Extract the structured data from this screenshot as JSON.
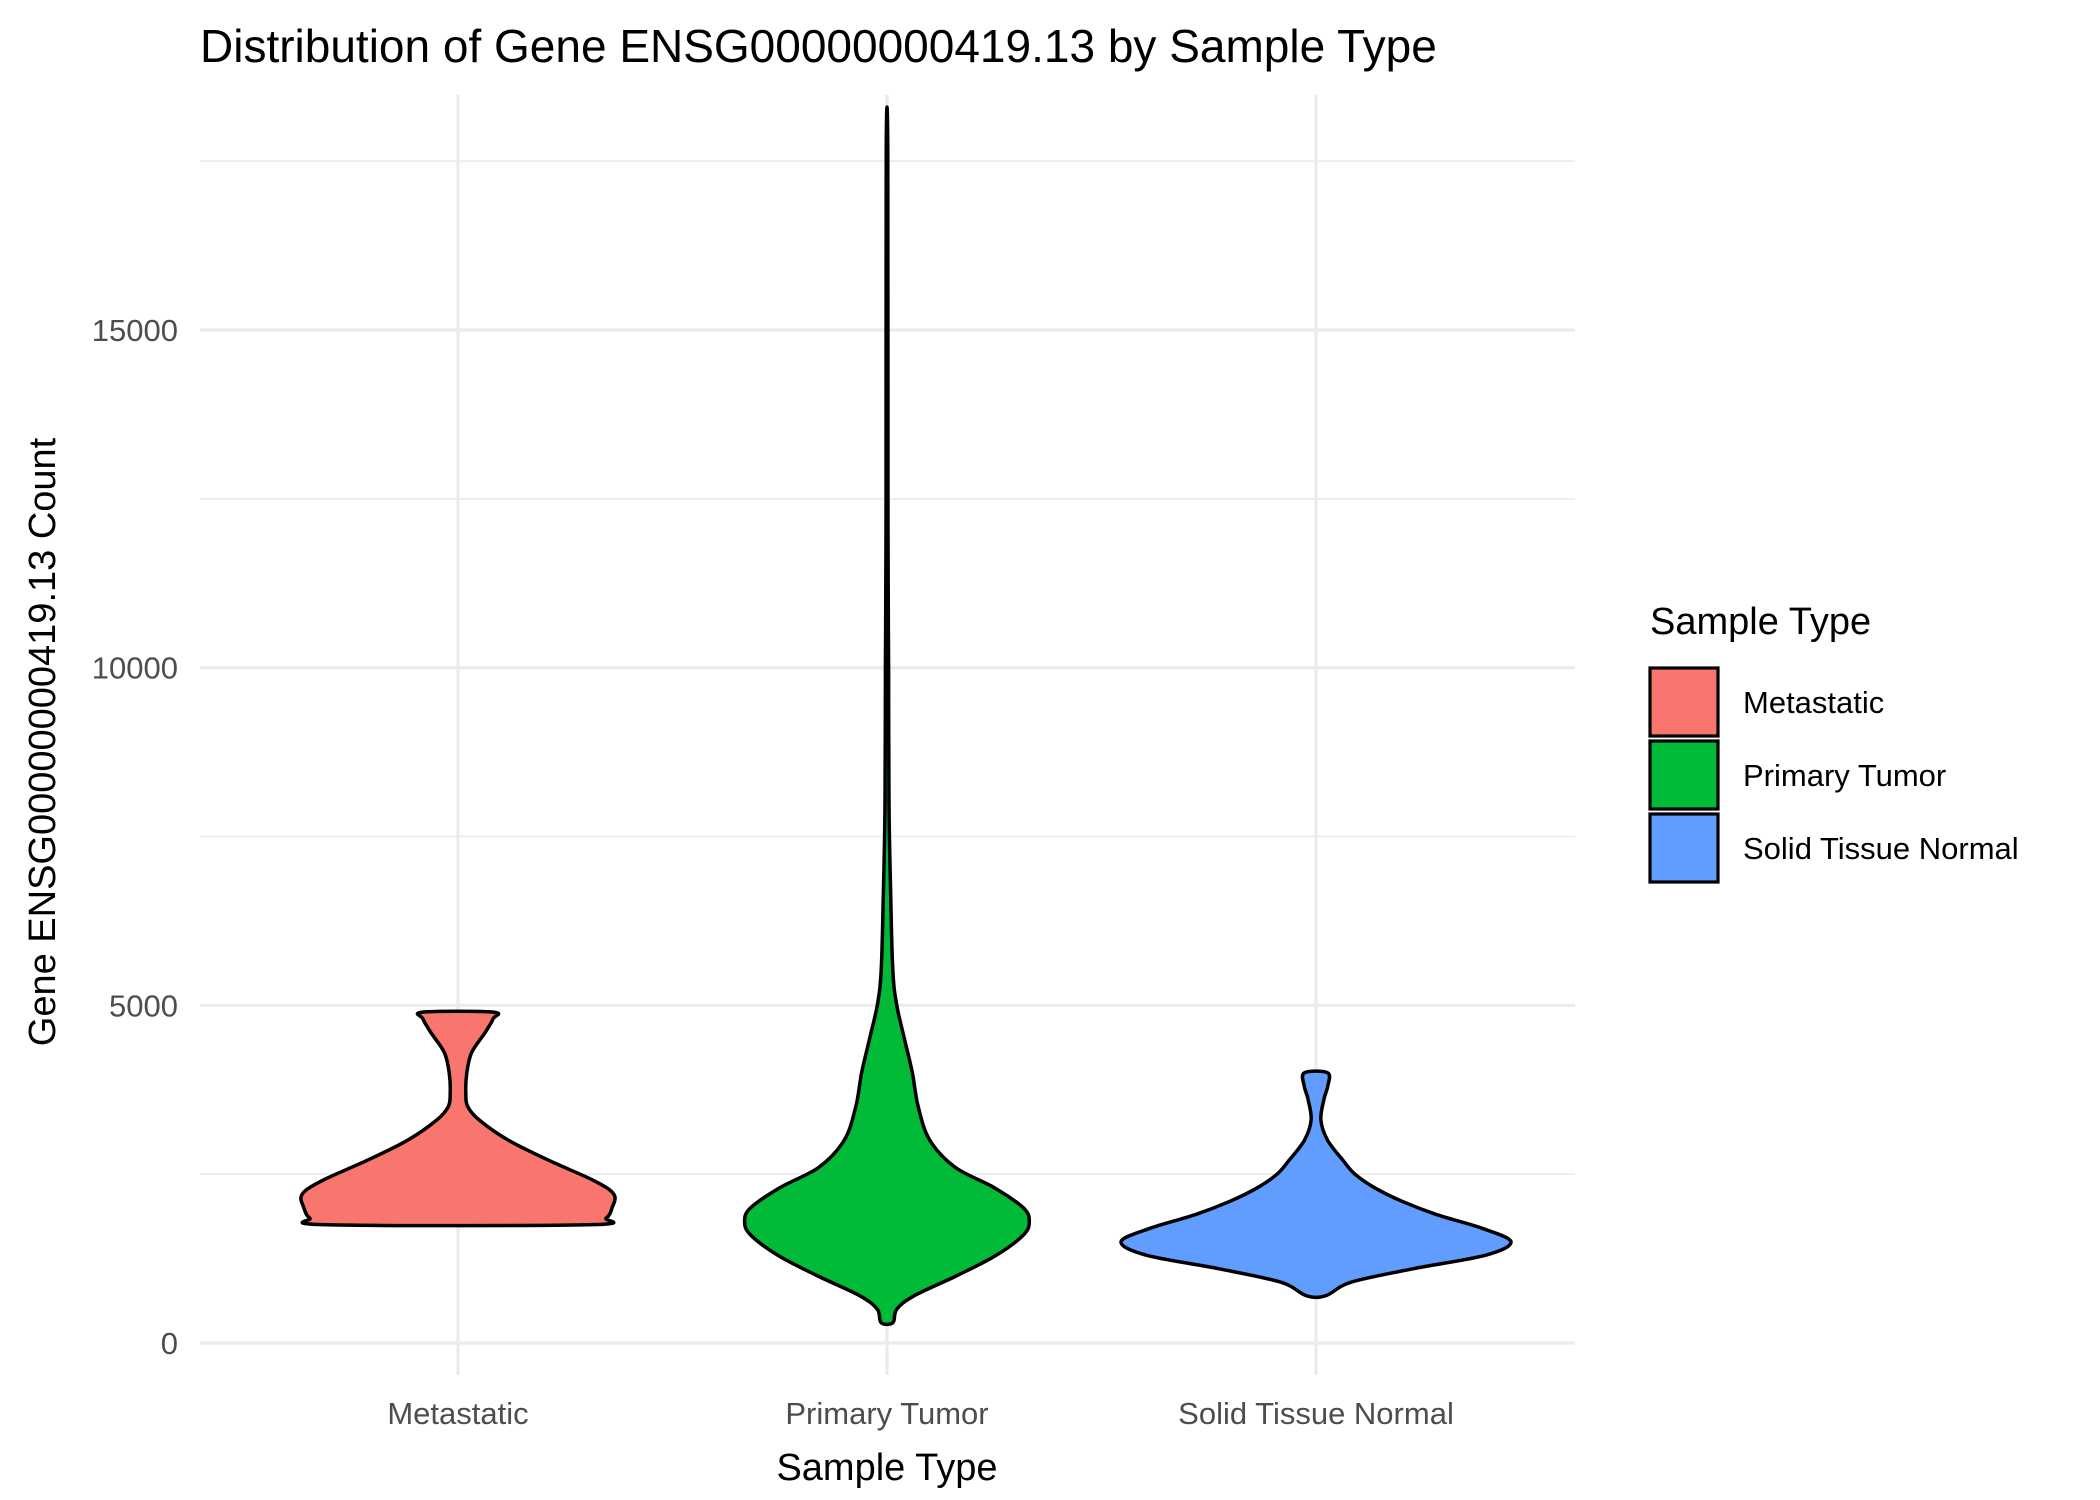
{
  "chart_data": {
    "type": "violin",
    "title": "Distribution of Gene ENSG00000000419.13 by Sample Type",
    "xlabel": "Sample Type",
    "ylabel": "Gene ENSG00000000419.13 Count",
    "ylim": [
      -300,
      18000
    ],
    "y_ticks": [
      0,
      5000,
      10000,
      15000
    ],
    "y_tick_labels": [
      "0",
      "5000",
      "10000",
      "15000"
    ],
    "grid": true,
    "legend": {
      "title": "Sample Type",
      "position": "right",
      "entries": [
        "Metastatic",
        "Primary Tumor",
        "Solid Tissue Normal"
      ]
    },
    "colors": {
      "Metastatic": "#F8766D",
      "Primary Tumor": "#00BA38",
      "Solid Tissue Normal": "#619CFF"
    },
    "categories": [
      "Metastatic",
      "Primary Tumor",
      "Solid Tissue Normal"
    ],
    "series": [
      {
        "name": "Metastatic",
        "min": 1750,
        "max": 4900,
        "profile": [
          [
            1750,
            0.67
          ],
          [
            1850,
            0.76
          ],
          [
            2000,
            0.79
          ],
          [
            2200,
            0.8
          ],
          [
            2400,
            0.7
          ],
          [
            2700,
            0.47
          ],
          [
            3000,
            0.26
          ],
          [
            3300,
            0.11
          ],
          [
            3500,
            0.05
          ],
          [
            3700,
            0.04
          ],
          [
            4000,
            0.045
          ],
          [
            4300,
            0.07
          ],
          [
            4600,
            0.14
          ],
          [
            4800,
            0.18
          ],
          [
            4900,
            0.18
          ]
        ]
      },
      {
        "name": "Primary Tumor",
        "min": 300,
        "max": 17600,
        "profile": [
          [
            300,
            0.03
          ],
          [
            500,
            0.05
          ],
          [
            700,
            0.14
          ],
          [
            1000,
            0.36
          ],
          [
            1300,
            0.56
          ],
          [
            1600,
            0.7
          ],
          [
            1800,
            0.73
          ],
          [
            2000,
            0.7
          ],
          [
            2300,
            0.55
          ],
          [
            2600,
            0.35
          ],
          [
            3000,
            0.22
          ],
          [
            3500,
            0.16
          ],
          [
            4000,
            0.13
          ],
          [
            4500,
            0.09
          ],
          [
            5000,
            0.05
          ],
          [
            5500,
            0.03
          ],
          [
            6500,
            0.02
          ],
          [
            8000,
            0.01
          ],
          [
            10000,
            0.008
          ],
          [
            12000,
            0.005
          ],
          [
            17600,
            0.004
          ]
        ]
      },
      {
        "name": "Solid Tissue Normal",
        "min": 700,
        "max": 4000,
        "profile": [
          [
            700,
            0.05
          ],
          [
            900,
            0.18
          ],
          [
            1100,
            0.5
          ],
          [
            1300,
            0.87
          ],
          [
            1500,
            1.0
          ],
          [
            1700,
            0.85
          ],
          [
            1900,
            0.62
          ],
          [
            2100,
            0.44
          ],
          [
            2300,
            0.3
          ],
          [
            2500,
            0.2
          ],
          [
            2700,
            0.14
          ],
          [
            3000,
            0.06
          ],
          [
            3300,
            0.025
          ],
          [
            3600,
            0.04
          ],
          [
            3800,
            0.06
          ],
          [
            4000,
            0.06
          ]
        ]
      }
    ]
  }
}
